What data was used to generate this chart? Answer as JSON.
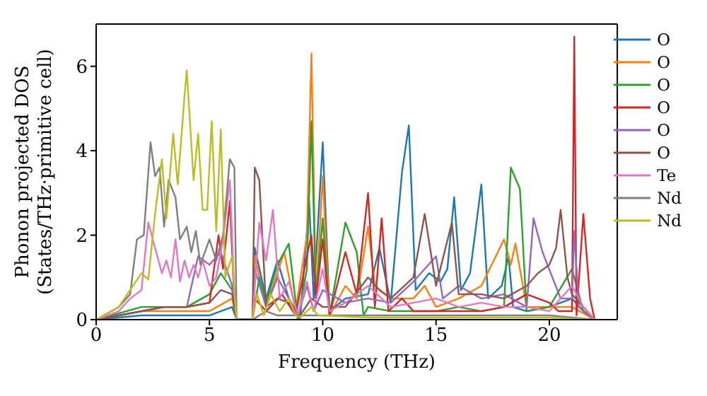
{
  "chart_data": {
    "type": "line",
    "xlabel": "Frequency (THz)",
    "ylabel": "Phonon projected DOS\n(States/THz·primitive cell)",
    "xlim": [
      0,
      23
    ],
    "ylim": [
      0,
      7
    ],
    "xticks": [
      0,
      5,
      10,
      15,
      20
    ],
    "yticks": [
      0,
      2,
      4,
      6
    ],
    "legend": "top right",
    "marker": "none",
    "line_style": "solid",
    "series": [
      {
        "name": "O",
        "color": "#1f77b4",
        "x": [
          0,
          2,
          3,
          4,
          5,
          5.5,
          6,
          6.2,
          6.9,
          7,
          7.5,
          8,
          8.5,
          9,
          9.4,
          9.6,
          10,
          10.3,
          11,
          12,
          12.5,
          13,
          13.5,
          13.8,
          14.1,
          14.7,
          15.2,
          15.5,
          15.8,
          16.1,
          16.5,
          17,
          17.3,
          17.9,
          18.2,
          18.4,
          19,
          20,
          21,
          21.5,
          22
        ],
        "values": [
          0,
          0.1,
          0.1,
          0.1,
          0.1,
          0.2,
          0.3,
          0,
          0,
          1.7,
          0.5,
          1.4,
          0.5,
          0,
          2.8,
          0.5,
          4.2,
          0.2,
          0.5,
          0.6,
          1.7,
          0.4,
          3.5,
          4.6,
          0.7,
          1.1,
          0.9,
          1.2,
          2.9,
          0.7,
          1.1,
          3.2,
          0.5,
          0.8,
          1.5,
          0.3,
          0.2,
          0.3,
          0.5,
          0.2,
          0
        ]
      },
      {
        "name": "O",
        "color": "#ff7f0e",
        "x": [
          0,
          2,
          3,
          4,
          5,
          6,
          6.2,
          6.9,
          7,
          7.5,
          8.3,
          8.8,
          9.3,
          9.5,
          9.7,
          10,
          10.3,
          11,
          11.5,
          12,
          12.3,
          13,
          14,
          14.5,
          15,
          16,
          17,
          18,
          18.3,
          18.5,
          19,
          20,
          21,
          22
        ],
        "values": [
          0,
          0.2,
          0.2,
          0.2,
          0.2,
          0.5,
          0,
          0,
          1.5,
          0.3,
          1.6,
          0.2,
          2,
          6.3,
          0.5,
          3.4,
          0.1,
          0.8,
          0.5,
          2.2,
          0.8,
          0.5,
          0.5,
          0.8,
          0.3,
          0.5,
          0.8,
          1.9,
          1.3,
          1.8,
          0.3,
          0.3,
          0.3,
          0
        ]
      },
      {
        "name": "O",
        "color": "#2ca02c",
        "x": [
          0,
          2,
          3,
          4,
          5,
          5.5,
          6,
          6.2,
          6.9,
          7.2,
          7.5,
          8,
          8.5,
          8.9,
          9.3,
          9.5,
          9.7,
          10,
          10.3,
          11,
          11.5,
          11.8,
          12,
          13,
          14,
          15,
          16,
          17,
          18,
          18.3,
          18.7,
          19,
          20,
          21,
          21.5,
          22
        ],
        "values": [
          0,
          0.3,
          0.3,
          0.3,
          0.6,
          1.1,
          0.7,
          0,
          0,
          1,
          0.4,
          1.3,
          1.8,
          0,
          1.2,
          4.7,
          0.5,
          2.4,
          0.1,
          2.3,
          1.6,
          0.1,
          0.3,
          0.2,
          0.2,
          0.2,
          0.3,
          0.2,
          0.3,
          3.6,
          3.1,
          0.2,
          0.3,
          1.2,
          0.2,
          0
        ]
      },
      {
        "name": "O",
        "color": "#d62728",
        "x": [
          0,
          2,
          3,
          4,
          5,
          5.4,
          5.6,
          5.9,
          6.1,
          6.2,
          6.9,
          7,
          7.5,
          8.2,
          8.8,
          9.3,
          9.5,
          9.7,
          10,
          10.3,
          11,
          11.5,
          12,
          12.3,
          12.6,
          12.9,
          13.5,
          14,
          15,
          16,
          17,
          18,
          19,
          20,
          20.4,
          21,
          21.1,
          21.2,
          21.5,
          21.8,
          22
        ],
        "values": [
          0,
          0.2,
          0.3,
          0.3,
          0.4,
          2,
          1.2,
          2.8,
          0.4,
          0,
          0,
          0.5,
          0.2,
          0.6,
          0.1,
          1.5,
          2,
          0.5,
          1.9,
          0.1,
          1.6,
          0.6,
          3,
          0.3,
          2.4,
          0.2,
          0.5,
          0.2,
          0.2,
          0.2,
          0.2,
          0.3,
          0.6,
          0.4,
          0.2,
          0.2,
          6.7,
          0.1,
          2.5,
          0.5,
          0
        ]
      },
      {
        "name": "O",
        "color": "#9467bd",
        "x": [
          0,
          2,
          3,
          4,
          4.5,
          5,
          5.5,
          6,
          6.2,
          6.9,
          7,
          7.5,
          8,
          8.9,
          9.3,
          9.6,
          10,
          11,
          12,
          13,
          14,
          15,
          15.3,
          16,
          17,
          18,
          19,
          19.3,
          19.7,
          20.5,
          21,
          21.1,
          21.3,
          22
        ],
        "values": [
          0,
          0.2,
          0.3,
          0.3,
          1.5,
          1.3,
          1.6,
          0.8,
          0,
          0,
          1.2,
          0.3,
          1,
          0.1,
          0.8,
          0.2,
          0.7,
          0.4,
          0.5,
          0.4,
          0.9,
          1.5,
          0.5,
          0.8,
          0.5,
          0.6,
          0.3,
          2.4,
          1.6,
          0.5,
          0.5,
          2.1,
          0.3,
          0
        ]
      },
      {
        "name": "O",
        "color": "#8c564b",
        "x": [
          0,
          2,
          3,
          4,
          5,
          5.5,
          6,
          6.2,
          6.9,
          7,
          7.2,
          7.5,
          8,
          8.5,
          9,
          9.5,
          10,
          11,
          12,
          12.5,
          13,
          14,
          14.5,
          15,
          15.7,
          16,
          17,
          18,
          19,
          19.5,
          20,
          20.3,
          20.5,
          20.8,
          21,
          22
        ],
        "values": [
          0,
          0.2,
          0.3,
          0.3,
          0.4,
          0.7,
          0.6,
          0,
          0,
          3.6,
          3.3,
          0.3,
          0.5,
          0.4,
          0.1,
          0.5,
          0.3,
          0.3,
          1,
          0.7,
          0.5,
          1,
          2.5,
          0.8,
          2.3,
          0.6,
          0.6,
          0.5,
          0.8,
          1.1,
          1.3,
          1.7,
          2.6,
          1,
          0.6,
          0
        ]
      },
      {
        "name": "Te",
        "color": "#e377c2",
        "x": [
          0,
          1,
          1.5,
          2,
          2.3,
          2.6,
          2.9,
          3.1,
          3.3,
          3.5,
          3.7,
          3.9,
          4.1,
          4.3,
          4.5,
          4.7,
          5,
          5.3,
          5.6,
          5.9,
          6.1,
          6.2,
          6.9,
          7.2,
          7.5,
          7.8,
          8.1,
          8.5,
          8.9,
          9.3,
          9.6,
          10,
          10.3,
          11,
          12,
          13,
          14,
          15,
          16,
          17,
          18,
          19,
          20,
          21,
          21.5,
          22
        ],
        "values": [
          0,
          0.2,
          0.5,
          0.7,
          2.3,
          1.7,
          1.1,
          1.4,
          1,
          1.9,
          0.9,
          1.4,
          1,
          1.3,
          1,
          1.4,
          0.8,
          1,
          1.9,
          3.3,
          0.6,
          0,
          0,
          2.3,
          1.4,
          2.6,
          0.5,
          0.9,
          0.1,
          0.9,
          0.2,
          1.2,
          0.2,
          0.4,
          0.8,
          0.3,
          0.4,
          0.5,
          0.3,
          0.4,
          0.3,
          0.3,
          0.2,
          0.8,
          0.3,
          0
        ]
      },
      {
        "name": "Nd",
        "color": "#7f7f7f",
        "x": [
          0,
          1,
          1.5,
          1.8,
          2.1,
          2.4,
          2.6,
          2.8,
          3,
          3.2,
          3.5,
          3.7,
          4,
          4.2,
          4.4,
          4.6,
          5,
          5.3,
          5.6,
          5.9,
          6.1,
          6.2,
          6.9,
          7.5,
          8,
          9,
          10,
          12,
          14,
          16,
          18,
          20,
          22
        ],
        "values": [
          0,
          0.3,
          0.6,
          1.9,
          2,
          4.2,
          3.4,
          3.6,
          2.2,
          3.3,
          2.9,
          1.9,
          2.2,
          1.6,
          2.1,
          1.3,
          1.9,
          1.4,
          2,
          3.8,
          3.6,
          0,
          0,
          0.2,
          0.1,
          0.1,
          0.1,
          0.1,
          0.1,
          0.1,
          0.1,
          0.1,
          0
        ]
      },
      {
        "name": "Nd",
        "color": "#bcbd22",
        "x": [
          0,
          1,
          1.5,
          2,
          2.3,
          2.6,
          2.9,
          3.1,
          3.4,
          3.6,
          3.9,
          4,
          4.3,
          4.5,
          4.7,
          4.9,
          5.1,
          5.3,
          5.5,
          5.7,
          6,
          6.2,
          6.9,
          7.1,
          7.4,
          7.7,
          8.1,
          8.5,
          8.8,
          9,
          9.5,
          9.8,
          12,
          16,
          20,
          22
        ],
        "values": [
          0,
          0.3,
          0.7,
          1.1,
          0.95,
          2.5,
          3.8,
          2.4,
          4.4,
          3.2,
          5.3,
          5.9,
          3.3,
          4.4,
          2.6,
          2.6,
          4.7,
          2.1,
          4.5,
          1,
          1.5,
          0,
          0,
          0.6,
          0.1,
          0.6,
          0.2,
          0.5,
          0.1,
          0.05,
          0.3,
          0.1,
          0.05,
          0.05,
          0.05,
          0
        ]
      }
    ]
  }
}
